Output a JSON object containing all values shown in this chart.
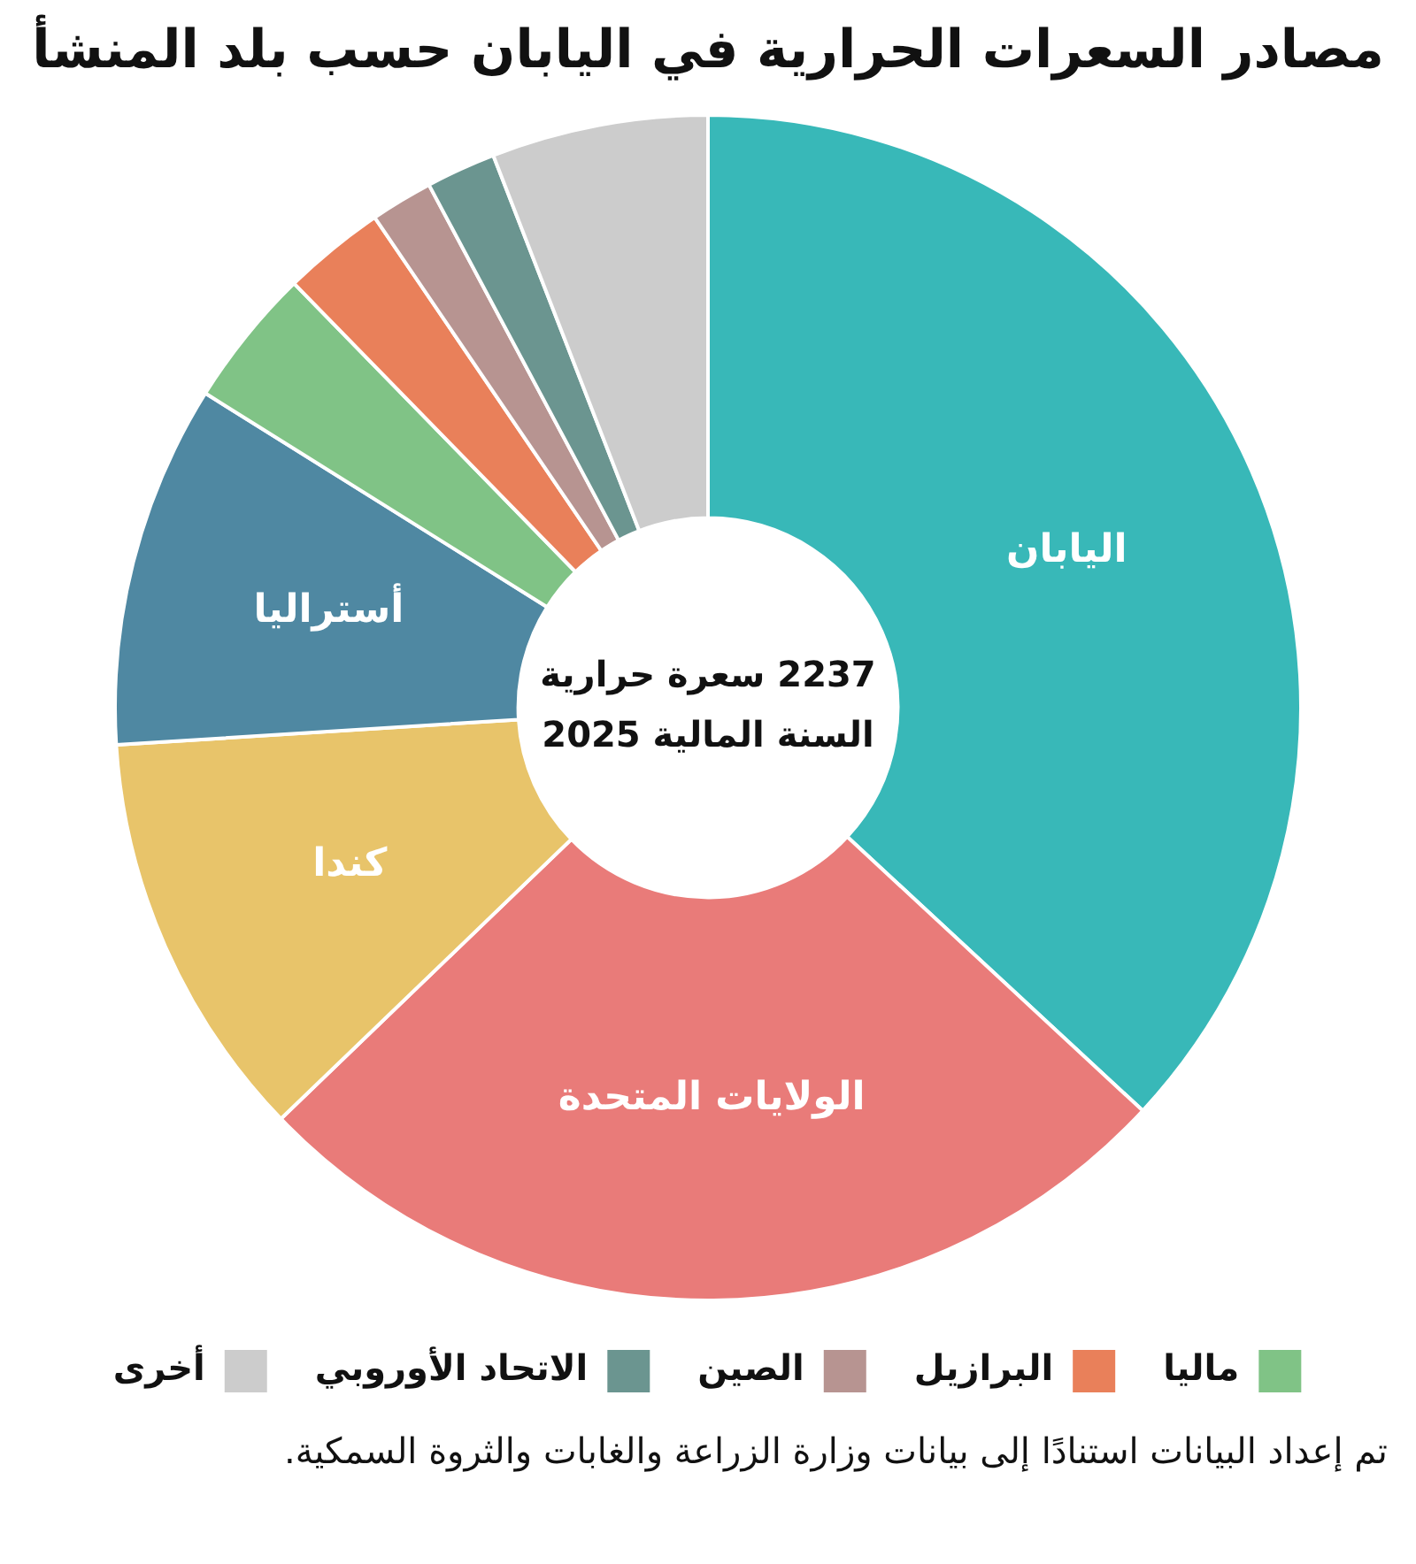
{
  "chart_data": {
    "type": "donut",
    "title": "مصادر السعرات الحرارية في اليابان حسب بلد المنشأ",
    "categories": [
      "اليابان",
      "الولايات المتحدة",
      "كندا",
      "أستراليا",
      "ماليا",
      "البرازيل",
      "الصين",
      "الاتحاد الأوروبي",
      "أخرى"
    ],
    "values": [
      36.9,
      25.9,
      11.2,
      9.9,
      3.8,
      2.8,
      1.7,
      1.9,
      5.9
    ],
    "colors": [
      "#38b8b8",
      "#e97b79",
      "#e8c46a",
      "#4f88a2",
      "#80c386",
      "#e9805a",
      "#b79491",
      "#6b9590",
      "#cccccc"
    ],
    "legend": "bottom",
    "annotations": [
      "2237 سعرة حرارية",
      "السنة المالية 2025",
      "تم إعداد البيانات استنادًا إلى بيانات وزارة الزراعة والغابات والثروة السمكية."
    ]
  }
}
